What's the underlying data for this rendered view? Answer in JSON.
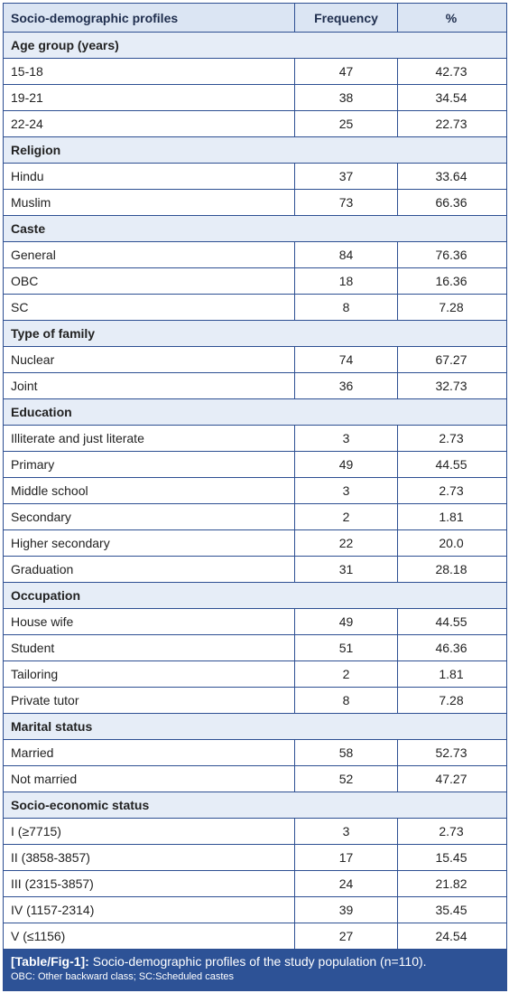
{
  "table": {
    "header": [
      "Socio-demographic profiles",
      "Frequency",
      "%"
    ],
    "sections": [
      {
        "title": "Age group (years)",
        "rows": [
          [
            "15-18",
            47,
            "42.73"
          ],
          [
            "19-21",
            38,
            "34.54"
          ],
          [
            "22-24",
            25,
            "22.73"
          ]
        ]
      },
      {
        "title": "Religion",
        "rows": [
          [
            "Hindu",
            37,
            "33.64"
          ],
          [
            "Muslim",
            73,
            "66.36"
          ]
        ]
      },
      {
        "title": "Caste",
        "rows": [
          [
            "General",
            84,
            "76.36"
          ],
          [
            "OBC",
            18,
            "16.36"
          ],
          [
            "SC",
            8,
            "7.28"
          ]
        ]
      },
      {
        "title": "Type of family",
        "rows": [
          [
            "Nuclear",
            74,
            "67.27"
          ],
          [
            "Joint",
            36,
            "32.73"
          ]
        ]
      },
      {
        "title": "Education",
        "rows": [
          [
            "Illiterate and just literate",
            3,
            "2.73"
          ],
          [
            "Primary",
            49,
            "44.55"
          ],
          [
            "Middle school",
            3,
            "2.73"
          ],
          [
            "Secondary",
            2,
            "1.81"
          ],
          [
            "Higher secondary",
            22,
            "20.0"
          ],
          [
            "Graduation",
            31,
            "28.18"
          ]
        ]
      },
      {
        "title": "Occupation",
        "rows": [
          [
            "House wife",
            49,
            "44.55"
          ],
          [
            "Student",
            51,
            "46.36"
          ],
          [
            "Tailoring",
            2,
            "1.81"
          ],
          [
            "Private tutor",
            8,
            "7.28"
          ]
        ]
      },
      {
        "title": "Marital status",
        "rows": [
          [
            "Married",
            58,
            "52.73"
          ],
          [
            "Not married",
            52,
            "47.27"
          ]
        ]
      },
      {
        "title": "Socio-economic status",
        "rows": [
          [
            "I (≥7715)",
            3,
            "2.73"
          ],
          [
            "II (3858-3857)",
            17,
            "15.45"
          ],
          [
            "III (2315-3857)",
            24,
            "21.82"
          ],
          [
            "IV (1157-2314)",
            39,
            "35.45"
          ],
          [
            "V (≤1156)",
            27,
            "24.54"
          ]
        ]
      }
    ]
  },
  "caption": {
    "label": "[Table/Fig-1]:",
    "text": "Socio-demographic profiles of the study population (n=110).",
    "note": "OBC: Other backward class; SC:Scheduled castes"
  }
}
